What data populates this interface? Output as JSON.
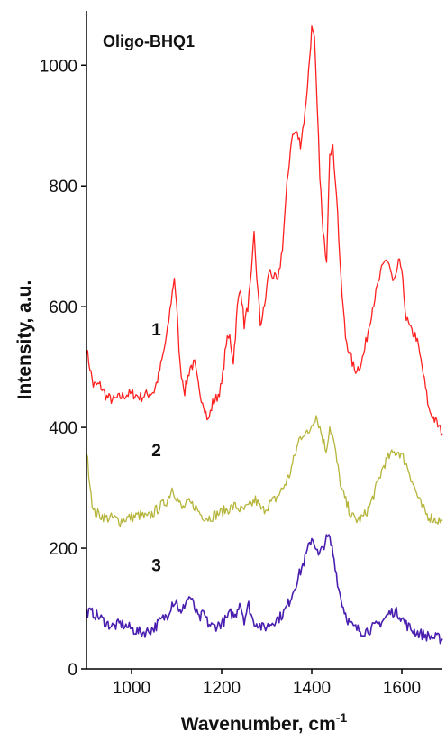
{
  "chart_data": {
    "type": "line",
    "title": "Oligo-BHQ1",
    "xlabel": "Wavenumber, cm",
    "xlabel_sup": "-1",
    "ylabel": "Intensity, a.u.",
    "xlim": [
      900,
      1690
    ],
    "ylim": [
      0,
      1090
    ],
    "xticks": [
      1000,
      1200,
      1400,
      1600
    ],
    "yticks": [
      0,
      200,
      400,
      600,
      800,
      1000
    ],
    "grid": false,
    "series": [
      {
        "name": "1",
        "color": "#ff2020",
        "x": [
          900,
          915,
          930,
          945,
          960,
          975,
          990,
          1005,
          1020,
          1035,
          1050,
          1060,
          1070,
          1080,
          1088,
          1095,
          1100,
          1108,
          1118,
          1130,
          1140,
          1150,
          1160,
          1170,
          1180,
          1190,
          1200,
          1210,
          1218,
          1226,
          1235,
          1242,
          1250,
          1258,
          1266,
          1272,
          1278,
          1286,
          1295,
          1305,
          1315,
          1325,
          1335,
          1345,
          1355,
          1365,
          1375,
          1385,
          1393,
          1400,
          1406,
          1412,
          1418,
          1425,
          1433,
          1440,
          1447,
          1455,
          1465,
          1475,
          1485,
          1495,
          1505,
          1515,
          1525,
          1535,
          1545,
          1555,
          1565,
          1572,
          1580,
          1588,
          1595,
          1602,
          1610,
          1620,
          1632,
          1645,
          1660,
          1675,
          1690
        ],
        "values": [
          530,
          470,
          470,
          450,
          445,
          450,
          455,
          455,
          450,
          455,
          460,
          485,
          520,
          560,
          610,
          650,
          600,
          500,
          460,
          500,
          505,
          460,
          440,
          410,
          440,
          450,
          470,
          540,
          550,
          510,
          600,
          635,
          570,
          600,
          650,
          720,
          650,
          570,
          600,
          660,
          650,
          640,
          700,
          800,
          880,
          890,
          870,
          920,
          990,
          1060,
          1040,
          930,
          820,
          720,
          680,
          860,
          860,
          790,
          640,
          550,
          520,
          495,
          500,
          520,
          560,
          600,
          630,
          660,
          680,
          670,
          640,
          650,
          680,
          640,
          580,
          560,
          550,
          500,
          430,
          410,
          390
        ]
      },
      {
        "name": "2",
        "color": "#b5b53c",
        "x": [
          900,
          915,
          930,
          945,
          960,
          975,
          990,
          1005,
          1020,
          1035,
          1050,
          1065,
          1080,
          1090,
          1100,
          1112,
          1125,
          1140,
          1155,
          1170,
          1185,
          1200,
          1215,
          1230,
          1245,
          1260,
          1275,
          1290,
          1305,
          1320,
          1335,
          1350,
          1362,
          1372,
          1382,
          1392,
          1402,
          1410,
          1418,
          1425,
          1432,
          1440,
          1448,
          1456,
          1466,
          1478,
          1490,
          1502,
          1515,
          1530,
          1545,
          1560,
          1572,
          1583,
          1593,
          1603,
          1615,
          1628,
          1642,
          1656,
          1670,
          1690
        ],
        "values": [
          360,
          260,
          255,
          250,
          250,
          245,
          250,
          252,
          255,
          250,
          260,
          270,
          280,
          300,
          285,
          265,
          275,
          270,
          255,
          250,
          255,
          260,
          265,
          270,
          262,
          268,
          280,
          262,
          272,
          282,
          298,
          320,
          352,
          380,
          392,
          388,
          410,
          420,
          400,
          380,
          362,
          402,
          380,
          342,
          298,
          272,
          252,
          246,
          252,
          272,
          305,
          338,
          352,
          358,
          360,
          350,
          330,
          300,
          272,
          255,
          248,
          245
        ]
      },
      {
        "name": "3",
        "color": "#4a1fb0",
        "x": [
          900,
          915,
          930,
          945,
          960,
          975,
          990,
          1005,
          1020,
          1035,
          1050,
          1065,
          1080,
          1090,
          1100,
          1110,
          1120,
          1130,
          1140,
          1150,
          1160,
          1170,
          1180,
          1190,
          1200,
          1210,
          1220,
          1230,
          1240,
          1250,
          1260,
          1270,
          1280,
          1290,
          1300,
          1310,
          1320,
          1330,
          1340,
          1350,
          1360,
          1370,
          1380,
          1390,
          1400,
          1408,
          1415,
          1422,
          1430,
          1438,
          1445,
          1452,
          1460,
          1470,
          1480,
          1490,
          1500,
          1515,
          1530,
          1545,
          1560,
          1572,
          1583,
          1595,
          1607,
          1620,
          1635,
          1650,
          1670,
          1690
        ],
        "values": [
          95,
          92,
          85,
          75,
          70,
          75,
          70,
          65,
          60,
          62,
          68,
          80,
          90,
          110,
          112,
          88,
          112,
          120,
          100,
          82,
          92,
          75,
          70,
          72,
          76,
          82,
          92,
          87,
          112,
          82,
          106,
          78,
          76,
          68,
          70,
          76,
          82,
          86,
          96,
          112,
          132,
          152,
          172,
          194,
          218,
          206,
          186,
          196,
          212,
          218,
          200,
          172,
          132,
          102,
          82,
          70,
          66,
          62,
          66,
          72,
          82,
          92,
          96,
          90,
          76,
          66,
          60,
          56,
          52,
          50
        ]
      }
    ]
  }
}
